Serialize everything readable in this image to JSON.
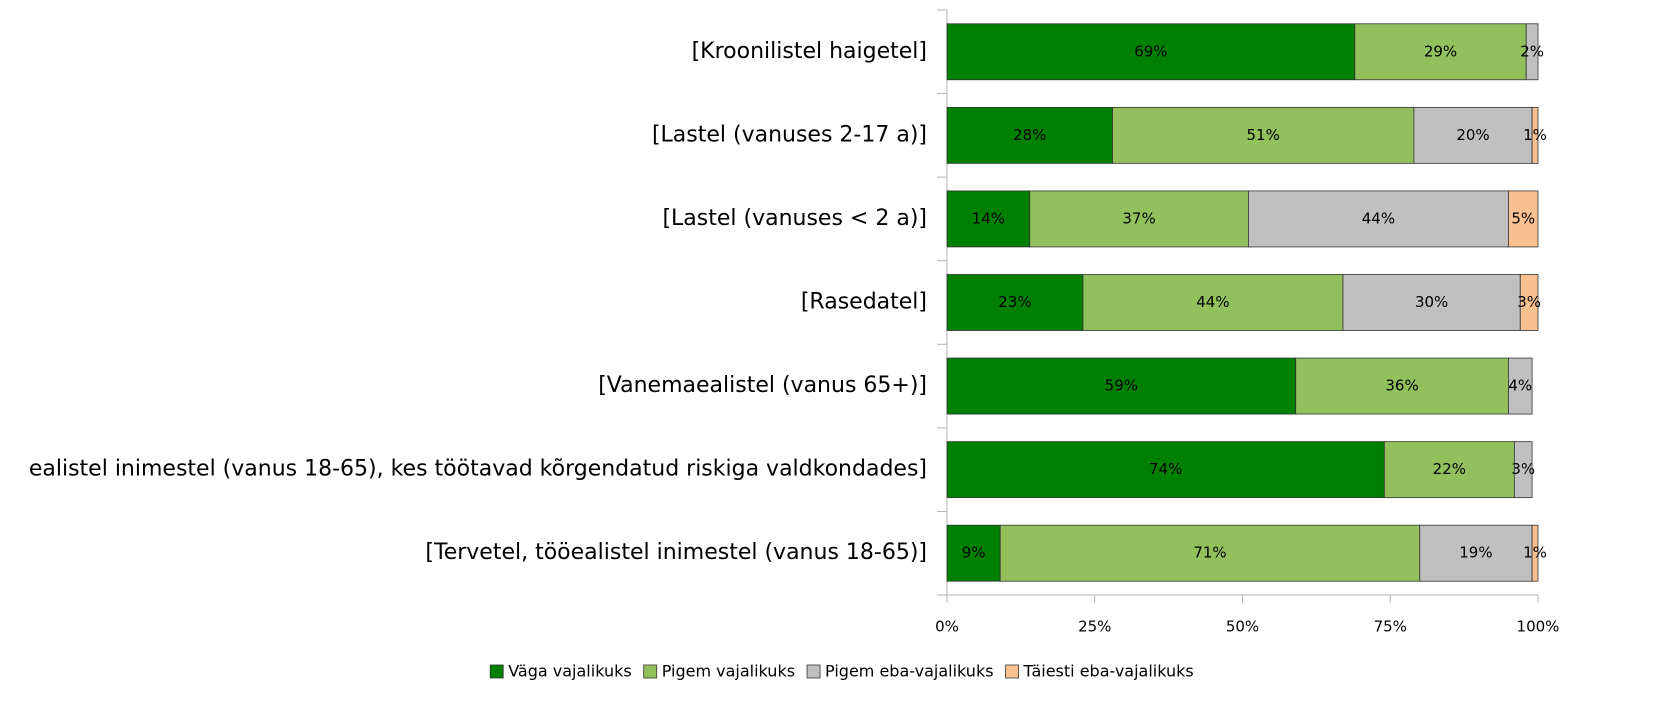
{
  "chart_data": {
    "type": "stacked_barh",
    "categories": [
      "[Kroonilistel haigetel]",
      "[Lastel (vanuses 2-17 a)]",
      "[Lastel (vanuses < 2 a)]",
      "[Rasedatel]",
      "[Vanemaealistel (vanus 65+)]",
      "ealistel inimestel (vanus 18-65), kes töötavad kõrgendatud riskiga valdkondades]",
      "[Tervetel, tööealistel inimestel (vanus 18-65)]"
    ],
    "series": [
      {
        "name": "Väga vajalikuks",
        "color": "#008000",
        "values": [
          69,
          28,
          14,
          23,
          59,
          74,
          9
        ],
        "value_labels": [
          "69%",
          "28%",
          "14%",
          "23%",
          "59%",
          "74%",
          "9%"
        ]
      },
      {
        "name": "Pigem vajalikuks",
        "color": "#92c05c",
        "values": [
          29,
          51,
          37,
          44,
          36,
          22,
          71
        ],
        "value_labels": [
          "29%",
          "51%",
          "37%",
          "44%",
          "36%",
          "22%",
          "71%"
        ]
      },
      {
        "name": "Pigem eba-vajalikuks",
        "color": "#c0c0c0",
        "values": [
          2,
          20,
          44,
          30,
          4,
          3,
          19
        ],
        "value_labels": [
          "2%",
          "20%",
          "44%",
          "30%",
          "4%",
          "3%",
          "19%"
        ]
      },
      {
        "name": "Täiesti eba-vajalikuks",
        "color": "#fac090",
        "values": [
          0,
          1,
          5,
          3,
          0,
          0,
          1
        ],
        "value_labels": [
          null,
          "1%",
          "5%",
          "3%",
          null,
          null,
          "1%"
        ]
      }
    ],
    "xlim": [
      0,
      100
    ],
    "xticks": [
      {
        "value": 0,
        "label": "0%"
      },
      {
        "value": 25,
        "label": "25%"
      },
      {
        "value": 50,
        "label": "50%"
      },
      {
        "value": 75,
        "label": "75%"
      },
      {
        "value": 100,
        "label": "100%"
      }
    ],
    "legend": "bottom"
  }
}
